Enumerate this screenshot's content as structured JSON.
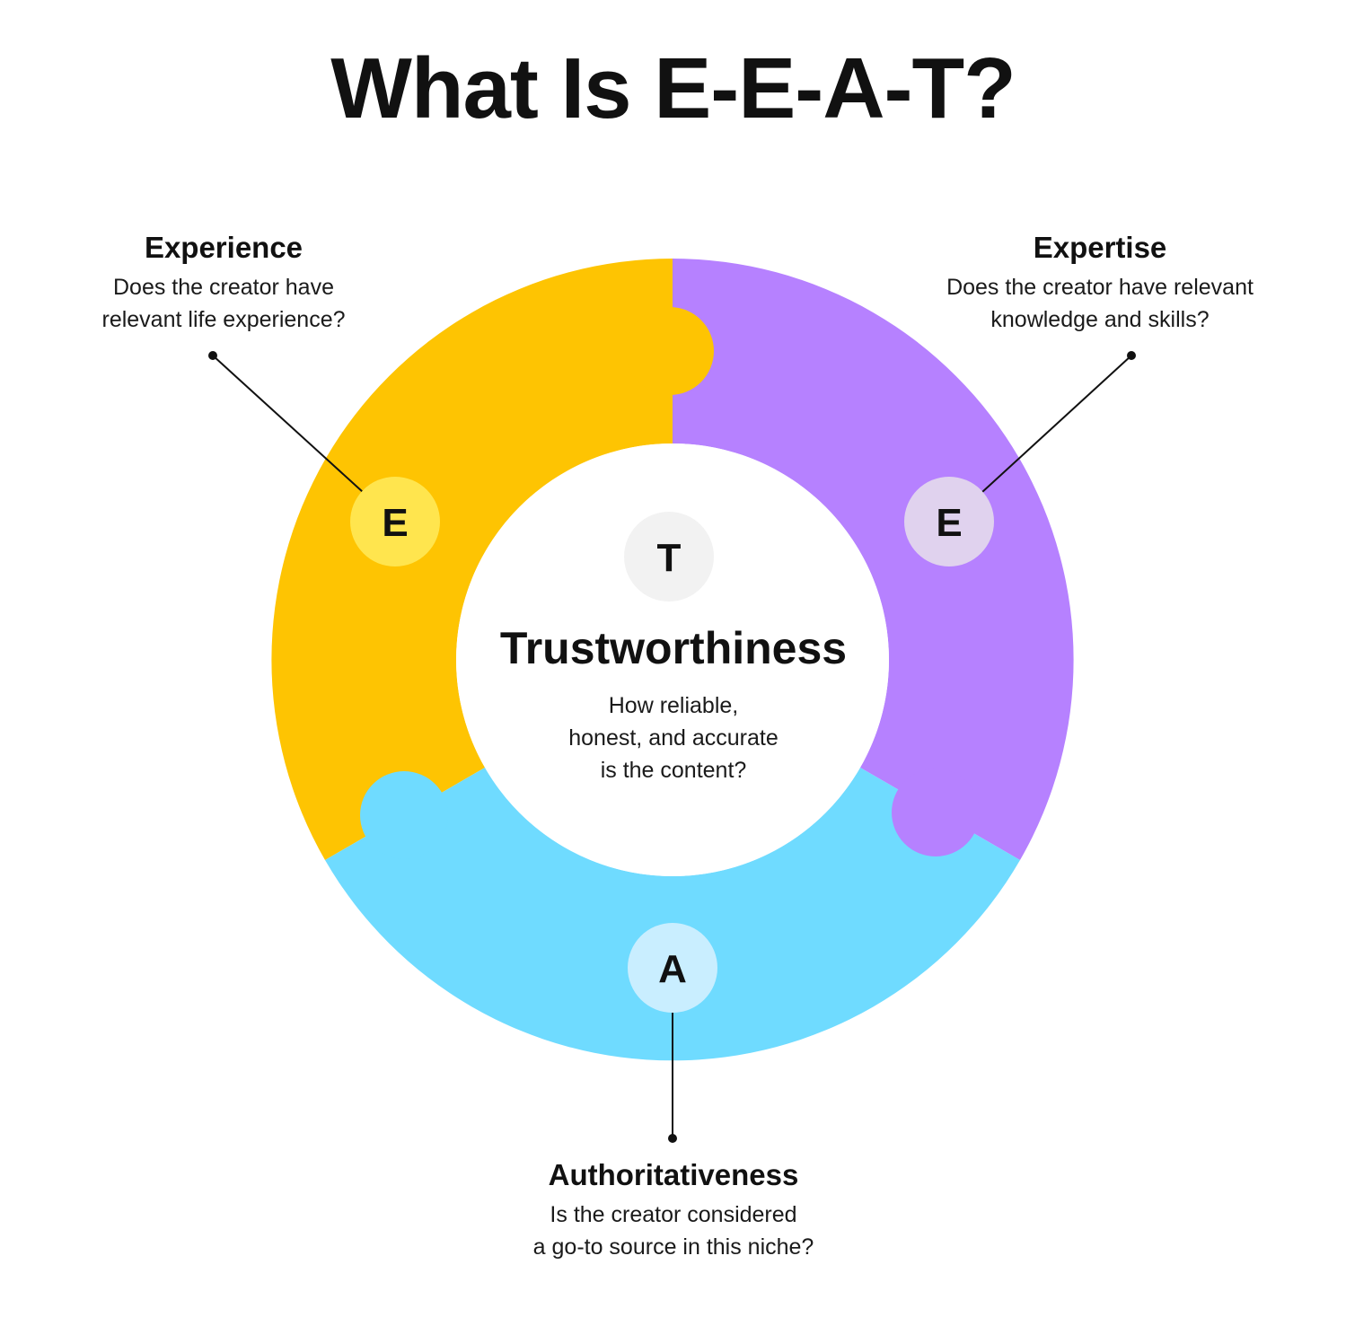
{
  "title": "What Is E-E-A-T?",
  "colors": {
    "experience": "#FEC402",
    "expertise": "#B681FF",
    "authoritativeness": "#6FDBFF",
    "center": "#FFFFFF",
    "experience_badge": "#FFE54E",
    "expertise_badge": "#E0D2EE",
    "authoritativeness_badge": "#C9EEFF",
    "trust_badge": "#F2F2F2"
  },
  "pillars": {
    "experience": {
      "letter": "E",
      "heading": "Experience",
      "description": "Does the creator have\nrelevant life experience?"
    },
    "expertise": {
      "letter": "E",
      "heading": "Expertise",
      "description": "Does the creator have relevant\nknowledge and skills?"
    },
    "authoritativeness": {
      "letter": "A",
      "heading": "Authoritativeness",
      "description": "Is the creator considered\na go-to source in this niche?"
    },
    "trustworthiness": {
      "letter": "T",
      "heading": "Trustworthiness",
      "description": "How reliable,\nhonest, and accurate\nis the content?"
    }
  }
}
